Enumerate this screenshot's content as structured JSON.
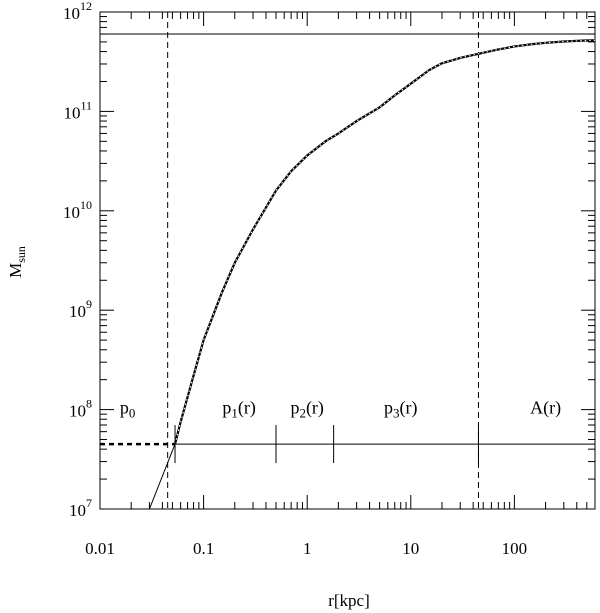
{
  "chart_data": {
    "type": "line",
    "xlabel": "r[kpc]",
    "ylabel_main": "M",
    "ylabel_sub": "sun",
    "x_scale": "log",
    "y_scale": "log",
    "xlim": [
      0.01,
      600
    ],
    "ylim": [
      10000000.0,
      1000000000000.0
    ],
    "grid": false,
    "x_ticks": [
      {
        "value": 0.01,
        "label": "0.01"
      },
      {
        "value": 0.1,
        "label": "0.1"
      },
      {
        "value": 1,
        "label": "1"
      },
      {
        "value": 10,
        "label": "10"
      },
      {
        "value": 100,
        "label": "100"
      }
    ],
    "y_ticks": [
      {
        "value": 10000000.0,
        "base": "10",
        "exp": "7"
      },
      {
        "value": 100000000.0,
        "base": "10",
        "exp": "8"
      },
      {
        "value": 1000000000.0,
        "base": "10",
        "exp": "9"
      },
      {
        "value": 10000000000.0,
        "base": "10",
        "exp": "10"
      },
      {
        "value": 100000000000.0,
        "base": "10",
        "exp": "11"
      },
      {
        "value": 1000000000000.0,
        "base": "10",
        "exp": "12"
      }
    ],
    "series": [
      {
        "style": "dashed-thick",
        "x": [
          0.01,
          0.053
        ],
        "y": [
          45000000.0,
          45000000.0
        ]
      },
      {
        "style": "dotted-curve",
        "x": [
          0.053,
          0.06,
          0.08,
          0.1,
          0.15,
          0.2,
          0.3,
          0.5,
          0.7,
          1,
          1.5,
          2,
          3,
          5,
          7,
          10,
          15,
          20,
          30,
          45,
          70,
          100,
          150,
          200,
          300,
          450,
          600
        ],
        "y": [
          45000000.0,
          75000000.0,
          220000000.0,
          500000000.0,
          1500000000.0,
          3000000000.0,
          6500000000.0,
          16000000000.0,
          25000000000.0,
          36000000000.0,
          50000000000.0,
          60000000000.0,
          80000000000.0,
          110000000000.0,
          145000000000.0,
          190000000000.0,
          260000000000.0,
          305000000000.0,
          345000000000.0,
          380000000000.0,
          420000000000.0,
          450000000000.0,
          475000000000.0,
          490000000000.0,
          505000000000.0,
          515000000000.0,
          520000000000.0
        ]
      },
      {
        "style": "thin-solid",
        "x": [
          0.03,
          0.053
        ],
        "y": [
          10000000.0,
          45000000.0
        ]
      },
      {
        "style": "thin-solid",
        "x": [
          0.053,
          600
        ],
        "y": [
          45000000.0,
          45000000.0
        ]
      },
      {
        "style": "thin-solid",
        "x": [
          0.01,
          600
        ],
        "y": [
          600000000000.0,
          600000000000.0
        ]
      }
    ],
    "vertical_dashed_lines": [
      0.045,
      45
    ],
    "segment_ticks": [
      0.053,
      0.5,
      1.8,
      45
    ],
    "region_labels": [
      {
        "x": 0.0185,
        "y": 105000000.0,
        "main": "p",
        "sub": "0",
        "suffix": ""
      },
      {
        "x": 0.22,
        "y": 105000000.0,
        "main": "p",
        "sub": "1",
        "suffix": "(r)"
      },
      {
        "x": 1.0,
        "y": 105000000.0,
        "main": "p",
        "sub": "2",
        "suffix": "(r)"
      },
      {
        "x": 8.0,
        "y": 105000000.0,
        "main": "p",
        "sub": "3",
        "suffix": "(r)"
      },
      {
        "x": 200,
        "y": 105000000.0,
        "main": "A",
        "sub": "",
        "suffix": "(r)"
      }
    ]
  }
}
